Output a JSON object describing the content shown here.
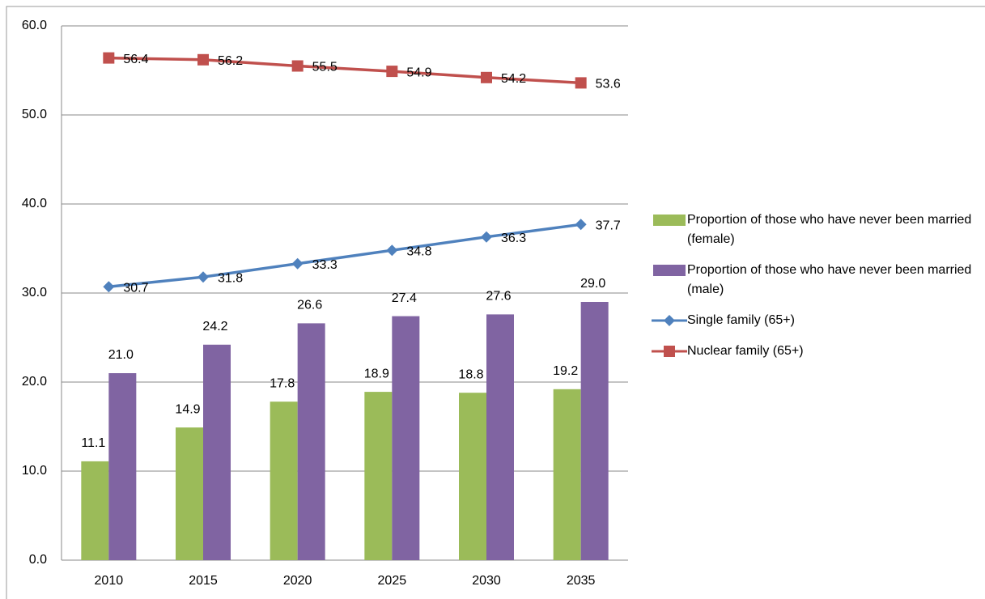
{
  "chart_data": {
    "type": "bar",
    "categories": [
      "2010",
      "2015",
      "2020",
      "2025",
      "2030",
      "2035"
    ],
    "series": [
      {
        "name": "Proportion of those who have never been married (female)",
        "type": "bar",
        "color": "#9bbb59",
        "values": [
          11.1,
          14.9,
          17.8,
          18.9,
          18.8,
          19.2
        ],
        "value_labels": [
          "11.1",
          "14.9",
          "17.8",
          "18.9",
          "18.8",
          "19.2"
        ]
      },
      {
        "name": "Proportion of those who have never been married (male)",
        "type": "bar",
        "color": "#8064a2",
        "values": [
          21,
          24.2,
          26.6,
          27.4,
          27.6,
          29
        ],
        "value_labels": [
          "21.0",
          "24.2",
          "26.6",
          "27.4",
          "27.6",
          "29.0"
        ]
      },
      {
        "name": "Single family (65+)",
        "type": "line",
        "marker": "diamond",
        "color": "#4f81bd",
        "values": [
          30.7,
          31.8,
          33.3,
          34.8,
          36.3,
          37.7
        ],
        "value_labels": [
          "30.7",
          "31.8",
          "33.3",
          "34.8",
          "36.3",
          "37.7"
        ]
      },
      {
        "name": "Nuclear family (65+)",
        "type": "line",
        "marker": "square",
        "color": "#c0504d",
        "values": [
          56.4,
          56.2,
          55.5,
          54.9,
          54.2,
          53.6
        ],
        "value_labels": [
          "56.4",
          "56.2",
          "55.5",
          "54.9",
          "54.2",
          "53.6"
        ]
      }
    ],
    "ylim": [
      0,
      60
    ],
    "yticks": [
      {
        "value": 0,
        "label": "0.0"
      },
      {
        "value": 10,
        "label": "10.0"
      },
      {
        "value": 20,
        "label": "20.0"
      },
      {
        "value": 30,
        "label": "30.0"
      },
      {
        "value": 40,
        "label": "40.0"
      },
      {
        "value": 50,
        "label": "50.0"
      },
      {
        "value": 60,
        "label": "60.0"
      }
    ],
    "grid": true,
    "legend": "right"
  }
}
